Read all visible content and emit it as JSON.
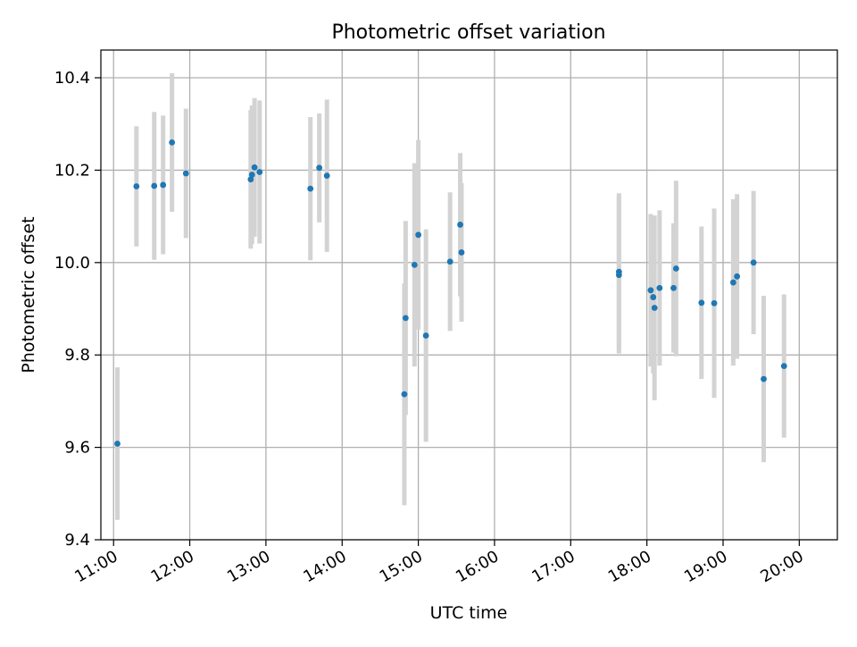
{
  "chart_data": {
    "type": "scatter",
    "title": "Photometric offset variation",
    "xlabel": "UTC time",
    "ylabel": "Photometric offset",
    "x_ticks": [
      "11:00",
      "12:00",
      "13:00",
      "14:00",
      "15:00",
      "16:00",
      "17:00",
      "18:00",
      "19:00",
      "20:00"
    ],
    "y_ticks": [
      "9.4",
      "9.6",
      "9.8",
      "10.0",
      "10.2",
      "10.4"
    ],
    "xlim": [
      "10:50",
      "20:30"
    ],
    "ylim": [
      9.4,
      10.46
    ],
    "grid": true,
    "colors": {
      "point": "#1f77b4",
      "errorbar": "#d3d3d3",
      "grid": "#b0b0b0",
      "axis": "#000000"
    },
    "series": [
      {
        "points": [
          {
            "x": "11:03",
            "y": 9.608,
            "err": 0.165
          },
          {
            "x": "11:18",
            "y": 10.165,
            "err": 0.13
          },
          {
            "x": "11:32",
            "y": 10.166,
            "err": 0.16
          },
          {
            "x": "11:39",
            "y": 10.168,
            "err": 0.15
          },
          {
            "x": "11:46",
            "y": 10.26,
            "err": 0.15
          },
          {
            "x": "11:57",
            "y": 10.193,
            "err": 0.14
          },
          {
            "x": "12:48",
            "y": 10.18,
            "err": 0.15
          },
          {
            "x": "12:49",
            "y": 10.19,
            "err": 0.15
          },
          {
            "x": "12:51",
            "y": 10.206,
            "err": 0.15
          },
          {
            "x": "12:55",
            "y": 10.196,
            "err": 0.155
          },
          {
            "x": "13:35",
            "y": 10.16,
            "err": 0.155
          },
          {
            "x": "13:42",
            "y": 10.205,
            "err": 0.118
          },
          {
            "x": "13:48",
            "y": 10.188,
            "err": 0.165
          },
          {
            "x": "14:49",
            "y": 9.715,
            "err": 0.24
          },
          {
            "x": "14:50",
            "y": 9.88,
            "err": 0.21
          },
          {
            "x": "14:57",
            "y": 9.995,
            "err": 0.22
          },
          {
            "x": "15:00",
            "y": 10.06,
            "err": 0.205
          },
          {
            "x": "15:06",
            "y": 9.842,
            "err": 0.23
          },
          {
            "x": "15:25",
            "y": 10.002,
            "err": 0.15
          },
          {
            "x": "15:33",
            "y": 10.082,
            "err": 0.155
          },
          {
            "x": "15:34",
            "y": 10.022,
            "err": 0.15
          },
          {
            "x": "17:38",
            "y": 9.98,
            "err": 0.17
          },
          {
            "x": "17:38",
            "y": 9.973,
            "err": 0.17
          },
          {
            "x": "18:03",
            "y": 9.94,
            "err": 0.165
          },
          {
            "x": "18:05",
            "y": 9.925,
            "err": 0.165
          },
          {
            "x": "18:06",
            "y": 9.902,
            "err": 0.2
          },
          {
            "x": "18:10",
            "y": 9.945,
            "err": 0.168
          },
          {
            "x": "18:21",
            "y": 9.945,
            "err": 0.14
          },
          {
            "x": "18:23",
            "y": 9.987,
            "err": 0.19
          },
          {
            "x": "18:43",
            "y": 9.913,
            "err": 0.165
          },
          {
            "x": "18:53",
            "y": 9.912,
            "err": 0.205
          },
          {
            "x": "19:08",
            "y": 9.957,
            "err": 0.18
          },
          {
            "x": "19:11",
            "y": 9.97,
            "err": 0.178
          },
          {
            "x": "19:24",
            "y": 10.0,
            "err": 0.155
          },
          {
            "x": "19:32",
            "y": 9.748,
            "err": 0.18
          },
          {
            "x": "19:48",
            "y": 9.776,
            "err": 0.155
          }
        ]
      }
    ]
  }
}
